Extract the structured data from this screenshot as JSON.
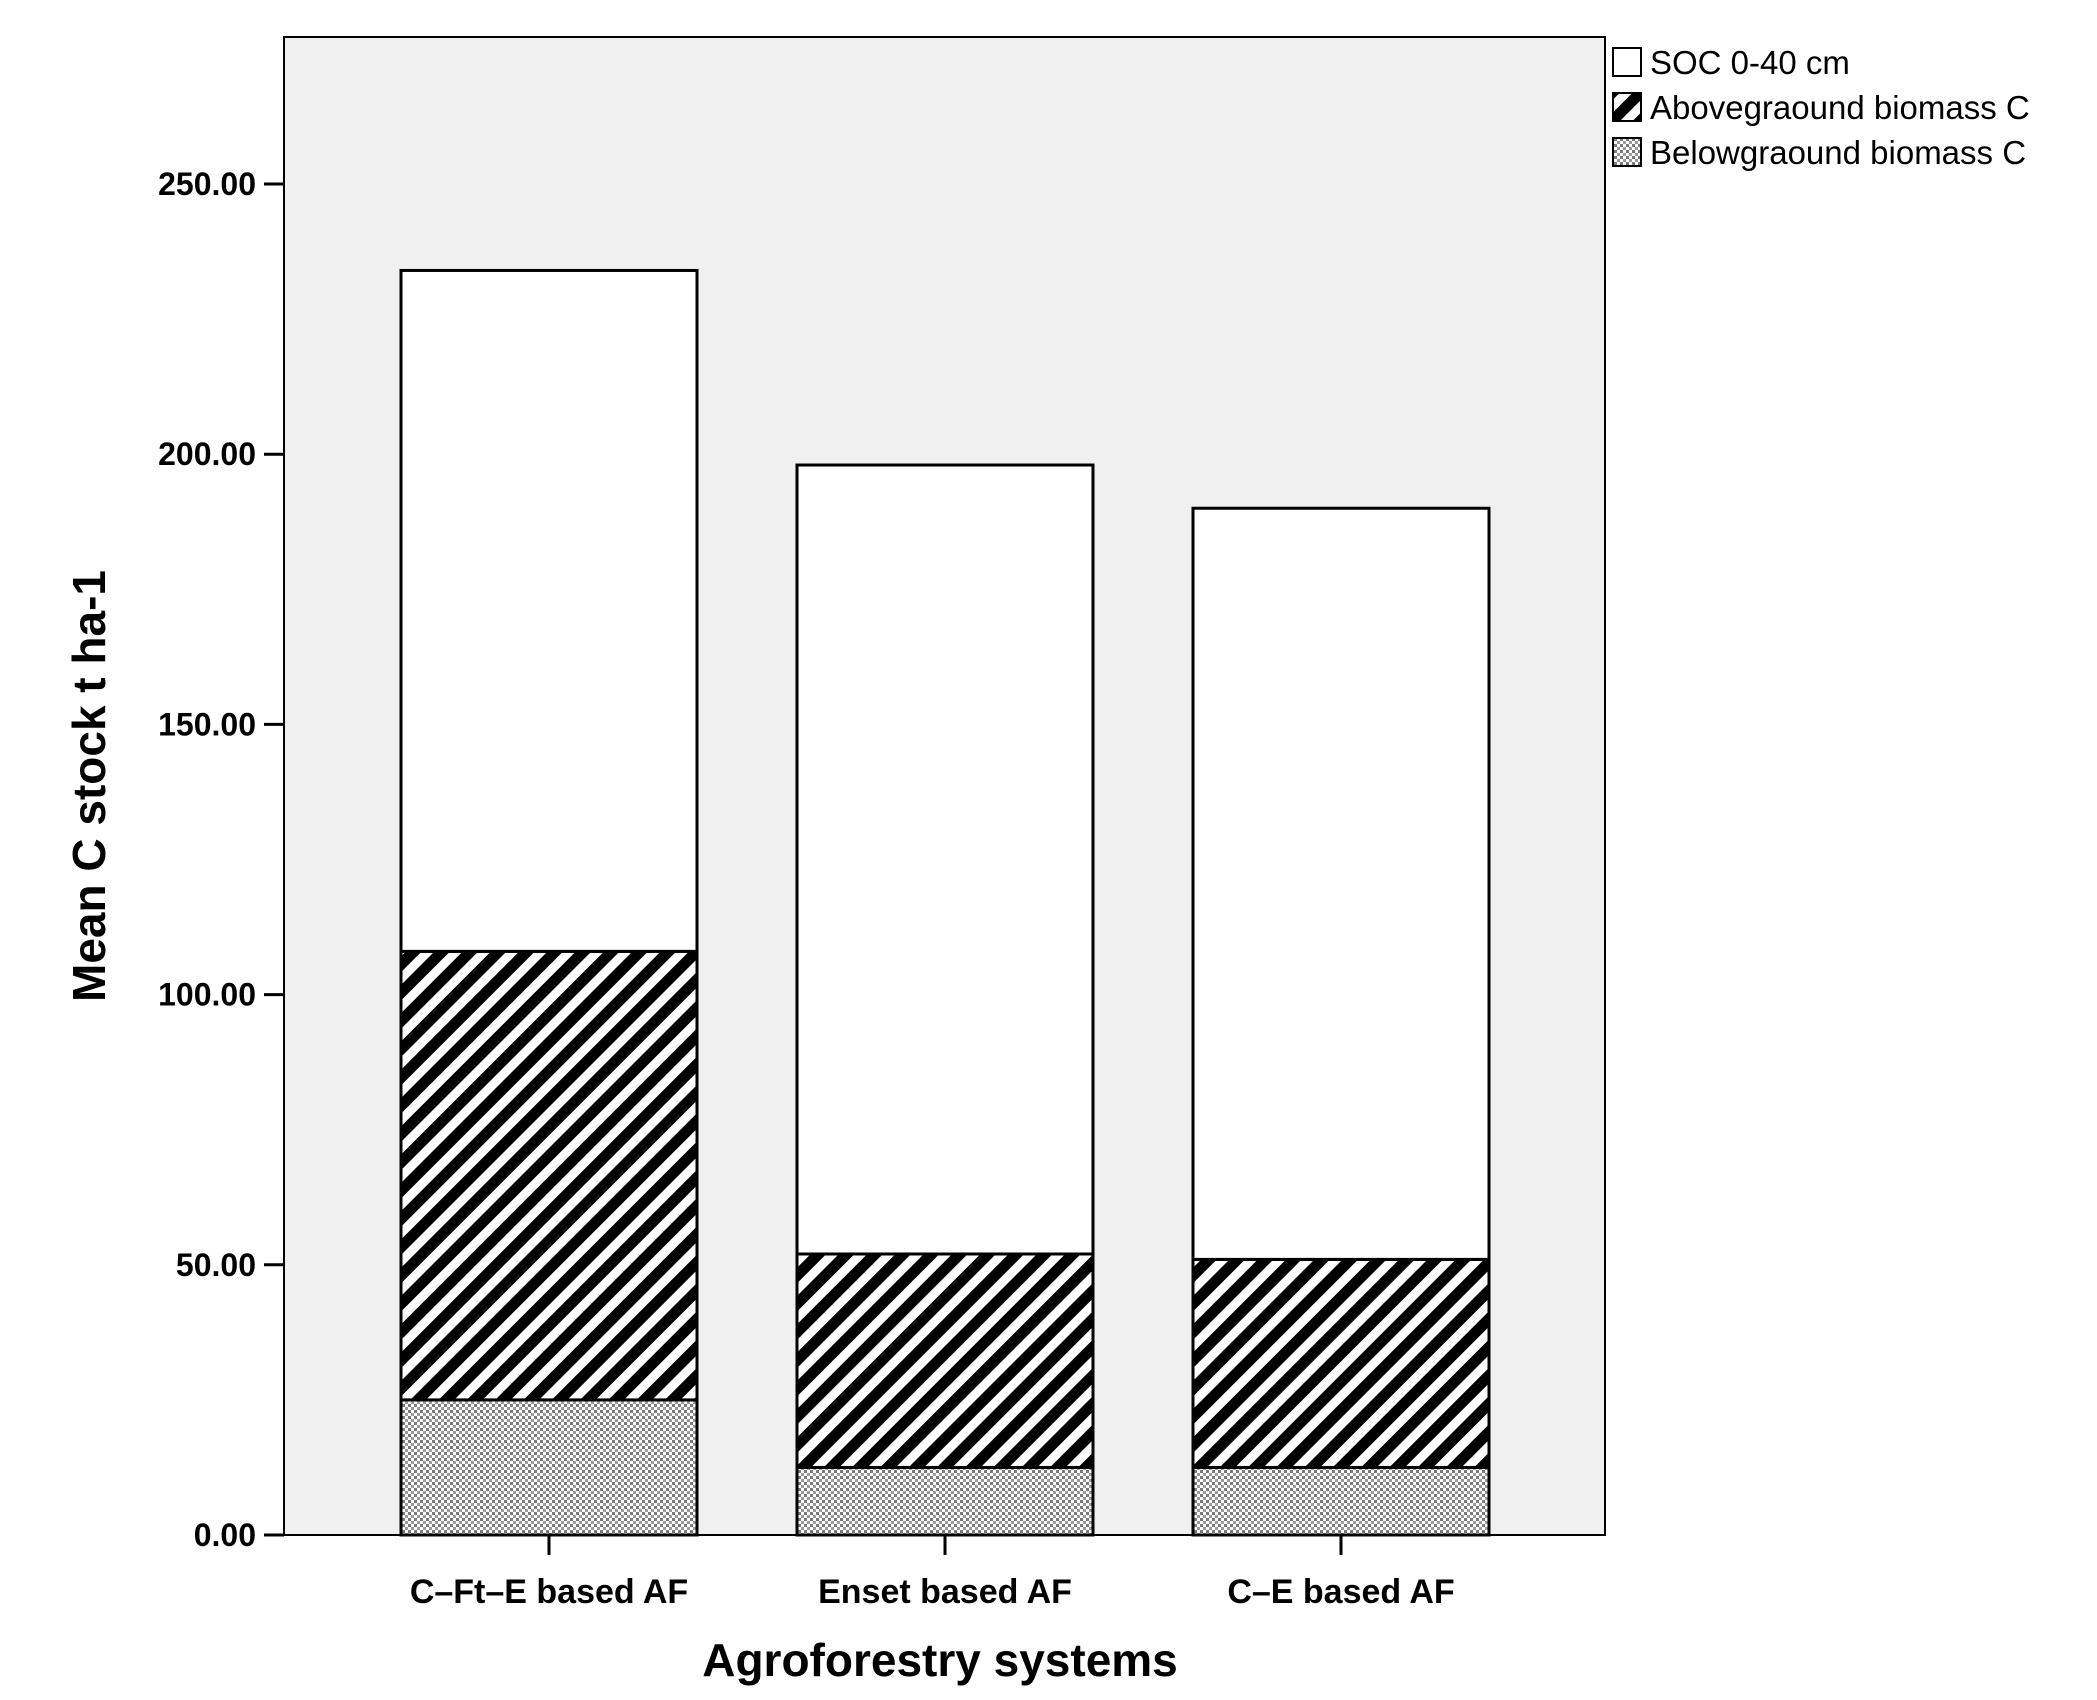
{
  "chart_data": {
    "type": "bar",
    "stacked": true,
    "categories": [
      "C–Ft–E based AF",
      "Enset based AF",
      "C–E based AF"
    ],
    "series": [
      {
        "name": "Belowgraound biomass C",
        "values": [
          25.0,
          12.5,
          12.5
        ],
        "pattern": "dots"
      },
      {
        "name": "Abovegraound biomass C",
        "values": [
          83.0,
          39.5,
          38.5
        ],
        "pattern": "hatch"
      },
      {
        "name": "SOC 0-40 cm",
        "values": [
          126.0,
          146.0,
          139.0
        ],
        "pattern": "solid-white"
      }
    ],
    "legend_order": [
      "SOC 0-40 cm",
      "Abovegraound biomass C",
      "Belowgraound biomass C"
    ],
    "xlabel": "Agroforestry systems",
    "ylabel": "Mean C stock t ha-1",
    "ylim": [
      0,
      280
    ],
    "yticks": [
      "0.00",
      "50.00",
      "100.00",
      "150.00",
      "200.00",
      "250.00"
    ],
    "grid": false,
    "legend_position": "top-right outside",
    "colors": {
      "plot_background": "#f0f0f0",
      "bar_fill": "#ffffff",
      "outline": "#000000"
    }
  }
}
